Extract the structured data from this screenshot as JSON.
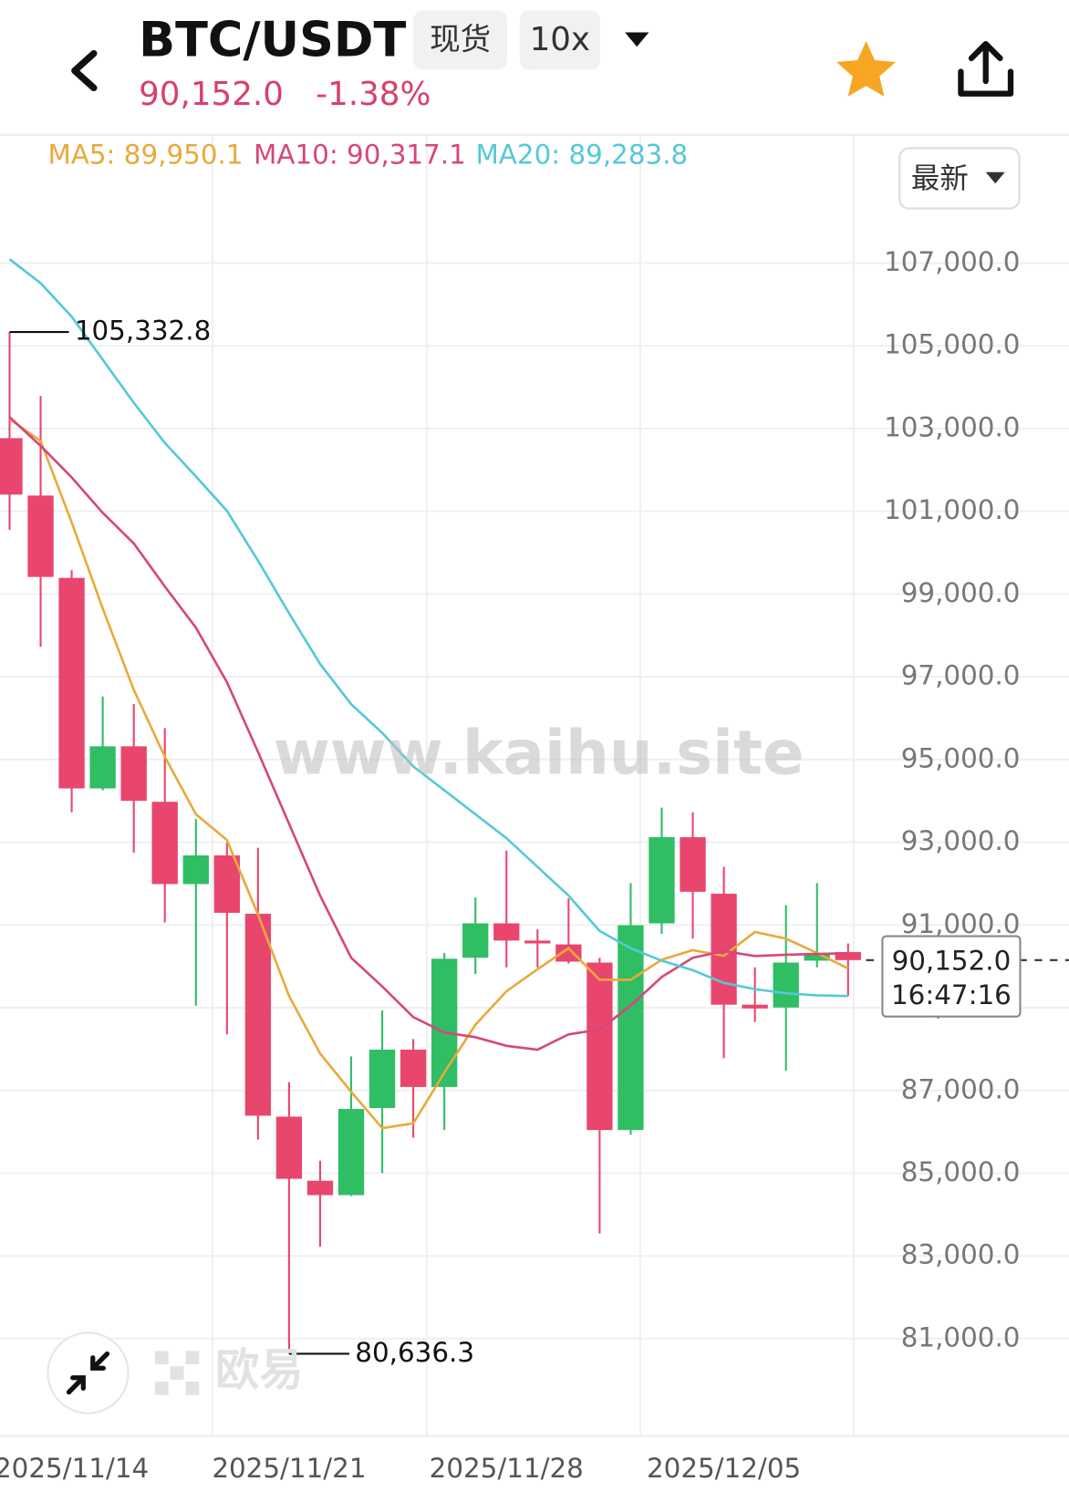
{
  "header": {
    "pair": "BTC/USDT",
    "market": "现货",
    "leverage": "10x",
    "price": "90,152.0",
    "change": "-1.38%",
    "price_mode": "最新",
    "watermark": "www.kaihu.site",
    "brand": "欧易"
  },
  "chart_data": {
    "type": "candlestick",
    "categories": [
      null,
      null,
      "2025/11/14",
      null,
      null,
      null,
      null,
      null,
      null,
      "2025/11/21",
      null,
      null,
      null,
      null,
      null,
      null,
      "2025/11/28",
      null,
      null,
      null,
      null,
      null,
      null,
      "2025/12/05",
      null,
      null,
      null,
      null
    ],
    "open": [
      102767,
      101380,
      99390,
      94302,
      95319,
      93978,
      91989,
      92683,
      91272,
      86368,
      84818,
      84471,
      86576,
      87987,
      87085,
      90208,
      91040,
      90624,
      90531,
      90092,
      86044,
      91040,
      93122,
      91757,
      89074,
      89005,
      90138,
      90346
    ],
    "high": [
      105332.8,
      103785,
      99575,
      96522,
      96337,
      95759,
      93562,
      92983,
      92867,
      87201,
      85304,
      87825,
      88935,
      88242,
      90323,
      91665,
      92798,
      90901,
      91642,
      90208,
      92012,
      93839,
      93723,
      92405,
      89977,
      91480,
      92012,
      90554
    ],
    "low": [
      100547,
      97725,
      93723,
      94256,
      92752,
      91063,
      89051,
      88357,
      85813,
      80636.3,
      83222,
      84450,
      85004,
      85859,
      86044,
      89815,
      89977,
      89977,
      90069,
      83546,
      85929,
      90786,
      90670,
      87779,
      88658,
      87478,
      89977,
      89282
    ],
    "close": [
      101403,
      99413,
      94302,
      95319,
      94001,
      91989,
      92683,
      91295,
      86391,
      84865,
      84471,
      86553,
      87987,
      87085,
      90185,
      91040,
      90624,
      90555,
      90115,
      86044,
      90994,
      93122,
      91803,
      89074,
      88982,
      90092,
      90323,
      90152.0
    ],
    "up_color": "#2fbe63",
    "down_color": "#e9466d",
    "series": [
      {
        "name": "MA5: 89,950.1",
        "color": "#e9a93c",
        "values": [
          103230,
          102698,
          100732,
          98650,
          96684,
          95065,
          93677,
          93053,
          91249,
          89282,
          87894,
          86969,
          86090,
          86206,
          87432,
          88589,
          89398,
          89930,
          90439,
          89676,
          89676,
          90161,
          90393,
          90254,
          90832,
          90670,
          90323,
          89950.1
        ]
      },
      {
        "name": "MA10: 90,317.1",
        "color": "#d6477a",
        "values": [
          103276,
          102582,
          101819,
          100963,
          100223,
          99182,
          98187,
          96869,
          95181,
          93446,
          91711,
          90208,
          89514,
          88774,
          88403,
          88288,
          88080,
          87987,
          88357,
          88473,
          89051,
          89745,
          90208,
          90369,
          90250,
          90280,
          90300,
          90317.1
        ]
      },
      {
        "name": "MA20: 89,283.8",
        "color": "#55c8d8",
        "values": [
          107093,
          106514,
          105705,
          104664,
          103623,
          102652,
          101842,
          101009,
          99807,
          98534,
          97309,
          96337,
          95643,
          94834,
          94255,
          93677,
          93099,
          92405,
          91711,
          90855,
          90439,
          90138,
          89907,
          89600,
          89450,
          89350,
          89300,
          89283.8
        ]
      }
    ],
    "ylim": [
      78600,
      110100
    ],
    "yticks": [
      {
        "value": 81000,
        "label": "81,000.0"
      },
      {
        "value": 83000,
        "label": "83,000.0"
      },
      {
        "value": 85000,
        "label": "85,000.0"
      },
      {
        "value": 87000,
        "label": "87,000.0"
      },
      {
        "value": 89000,
        "label": "89,000.0"
      },
      {
        "value": 91000,
        "label": "91,000.0"
      },
      {
        "value": 93000,
        "label": "93,000.0"
      },
      {
        "value": 95000,
        "label": "95,000.0"
      },
      {
        "value": 97000,
        "label": "97,000.0"
      },
      {
        "value": 99000,
        "label": "99,000.0"
      },
      {
        "value": 101000,
        "label": "101,000.0"
      },
      {
        "value": 103000,
        "label": "103,000.0"
      },
      {
        "value": 105000,
        "label": "105,000.0"
      },
      {
        "value": 107000,
        "label": "107,000.0"
      }
    ],
    "grid": true,
    "annotations": [
      {
        "value": 105332.8,
        "label": "105,332.8"
      },
      {
        "value": 80636.3,
        "label": "80,636.3"
      }
    ],
    "current_price": {
      "value": 90152.0,
      "label": "90,152.0"
    },
    "countdown": "16:47:16"
  }
}
